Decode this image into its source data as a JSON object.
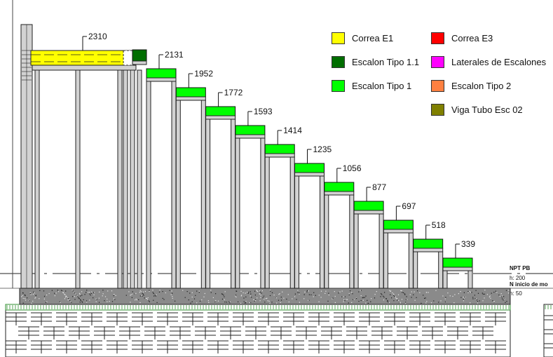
{
  "legend": {
    "items": [
      {
        "label": "Correa E1",
        "color": "#ffff00"
      },
      {
        "label": "Escalon Tipo 1.1",
        "color": "#006e00"
      },
      {
        "label": "Escalon Tipo 1",
        "color": "#00ff00"
      },
      {
        "label": "Correa E3",
        "color": "#ff0000"
      },
      {
        "label": "Laterales de Escalones",
        "color": "#ff00ff"
      },
      {
        "label": "Escalon Tipo 2",
        "color": "#ff8040"
      },
      {
        "label": "Viga Tubo Esc 02",
        "color": "#808000"
      }
    ]
  },
  "elevations": [
    "2310",
    "2131",
    "1952",
    "1772",
    "1593",
    "1414",
    "1235",
    "1056",
    "877",
    "697",
    "518",
    "339"
  ],
  "levels": {
    "npt_label": "NPT PB",
    "npt_height": "h: 200",
    "start_label": "N inicio de mo",
    "start_height": "h: 50"
  },
  "colors": {
    "correa": "#ffff00",
    "step_dark": "#006e00",
    "step": "#00ff00",
    "post_fill": "#d2d2d2",
    "slab_fill": "#8a8a8a",
    "hatch": "#2f8f2f"
  }
}
